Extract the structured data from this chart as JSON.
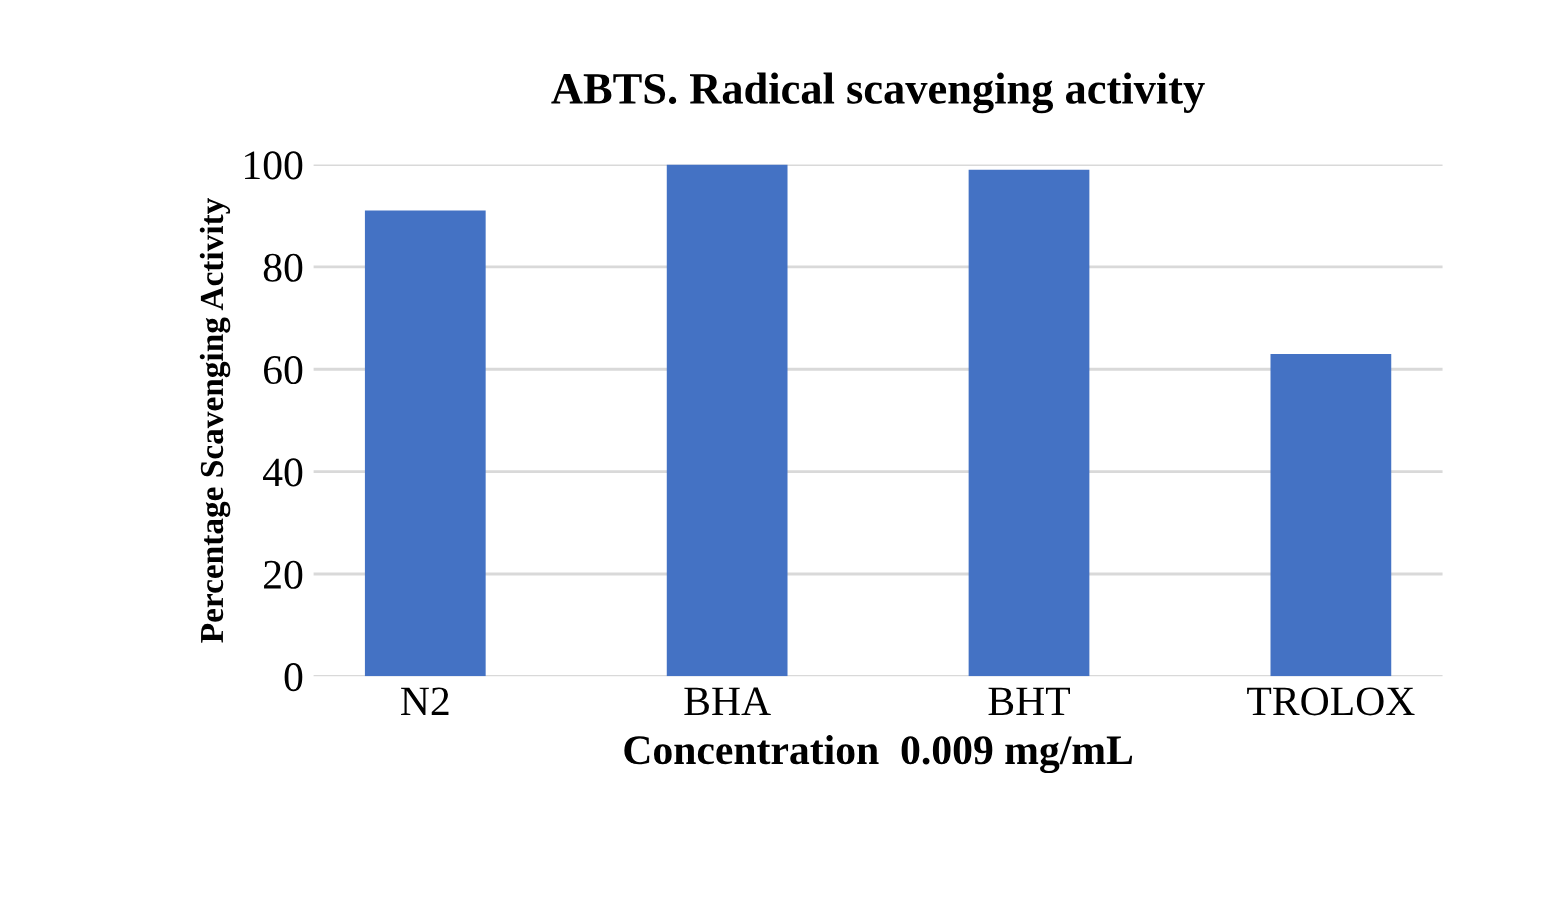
{
  "chart_data": {
    "type": "bar",
    "title": "ABTS. Radical scavenging activity",
    "xlabel": "Concentration  0.009 mg/mL",
    "ylabel": "Percentage Scavenging Activity",
    "categories": [
      "N2",
      "BHA",
      "BHT",
      "TROLOX"
    ],
    "values": [
      91,
      100,
      99,
      63
    ],
    "color": "#4472c4",
    "ylim": [
      0,
      100
    ],
    "yticks": [
      0,
      20,
      40,
      60,
      80,
      100
    ],
    "grid": "y"
  }
}
